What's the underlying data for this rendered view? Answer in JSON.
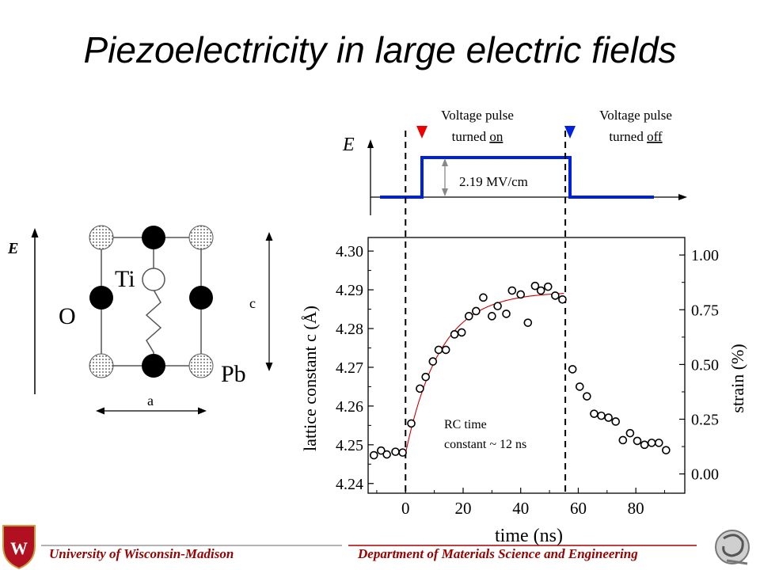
{
  "title": "Piezoelectricity in large electric fields",
  "unit_cell": {
    "field_label": "E",
    "atom_ti": "Ti",
    "atom_o": "O",
    "atom_pb": "Pb",
    "dim_c": "c",
    "dim_a": "a"
  },
  "pulse_diagram": {
    "field_label": "E",
    "pulse_on_line1": "Voltage pulse",
    "pulse_on_line2_prefix": "turned ",
    "pulse_on_line2_u": "on",
    "pulse_off_line1": "Voltage pulse",
    "pulse_off_line2_prefix": "turned ",
    "pulse_off_line2_u": "off",
    "amplitude_label": "2.19 MV/cm",
    "colors": {
      "pulse": "#0022dd",
      "on_marker": "#ee0000",
      "off_marker": "#0022dd"
    }
  },
  "chart_data": {
    "type": "scatter",
    "xlabel": "time (ns)",
    "ylabel": "lattice constant c (Å)",
    "y2label": "strain (%)",
    "xlim": [
      -13,
      97
    ],
    "ylim": [
      4.2375,
      4.3035
    ],
    "y2lim": [
      -0.088,
      1.08
    ],
    "xticks": [
      0,
      20,
      40,
      60,
      80
    ],
    "yticks": [
      4.24,
      4.25,
      4.26,
      4.27,
      4.28,
      4.29,
      4.3
    ],
    "y2ticks": [
      0.0,
      0.25,
      0.5,
      0.75,
      1.0
    ],
    "annotation_line1": "RC time",
    "annotation_line2": "constant ~ 12 ns",
    "vlines_x": [
      0,
      55.5
    ],
    "series": [
      {
        "marker": "open-circle",
        "points": [
          [
            -11,
            4.2473
          ],
          [
            -8.5,
            4.2485
          ],
          [
            -6.5,
            4.2475
          ],
          [
            -3.5,
            4.2482
          ],
          [
            -1,
            4.248
          ],
          [
            2,
            4.2555
          ],
          [
            5,
            4.2645
          ],
          [
            7,
            4.2675
          ],
          [
            9.5,
            4.2715
          ],
          [
            11.5,
            4.2745
          ],
          [
            14,
            4.2745
          ],
          [
            17,
            4.2785
          ],
          [
            19.5,
            4.279
          ],
          [
            22,
            4.2832
          ],
          [
            24.5,
            4.2845
          ],
          [
            27,
            4.288
          ],
          [
            30,
            4.2832
          ],
          [
            32,
            4.2858
          ],
          [
            35,
            4.2838
          ],
          [
            37,
            4.2898
          ],
          [
            40,
            4.2888
          ],
          [
            42.5,
            4.2815
          ],
          [
            45,
            4.291
          ],
          [
            47,
            4.2898
          ],
          [
            49.5,
            4.2908
          ],
          [
            52,
            4.2885
          ],
          [
            54.5,
            4.2875
          ],
          [
            58,
            4.2695
          ],
          [
            60.5,
            4.265
          ],
          [
            63,
            4.2625
          ],
          [
            65.5,
            4.258
          ],
          [
            68,
            4.2575
          ],
          [
            70.5,
            4.257
          ],
          [
            73,
            4.256
          ],
          [
            75.5,
            4.2512
          ],
          [
            78,
            4.253
          ],
          [
            80.5,
            4.251
          ],
          [
            83,
            4.25
          ],
          [
            85.5,
            4.2505
          ],
          [
            88,
            4.2505
          ],
          [
            90.5,
            4.2486
          ]
        ]
      }
    ],
    "fit_curve": {
      "color": "#cc0000",
      "y0": 4.2478,
      "y_inf": 4.2895,
      "tau_ns": 12,
      "x_start": 0,
      "x_end": 55
    }
  },
  "footer": {
    "left": "University  of Wisconsin-Madison",
    "right": "Department of Materials Science and Engineering"
  }
}
